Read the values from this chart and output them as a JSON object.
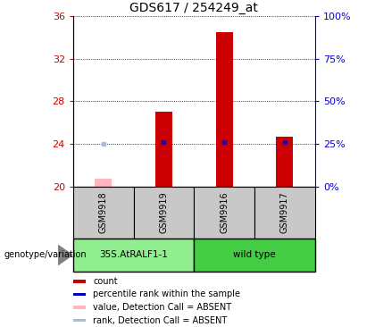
{
  "title": "GDS617 / 254249_at",
  "samples": [
    "GSM9918",
    "GSM9919",
    "GSM9916",
    "GSM9917"
  ],
  "ylim_left": [
    20,
    36
  ],
  "yticks_left": [
    20,
    24,
    28,
    32,
    36
  ],
  "ylim_right": [
    0,
    100
  ],
  "yticks_right": [
    0,
    25,
    50,
    75,
    100
  ],
  "bar_bottom": 20,
  "count_values": [
    20.7,
    27.0,
    34.5,
    24.7
  ],
  "count_absent": [
    true,
    false,
    false,
    false
  ],
  "percentile_values": [
    24.8,
    26.0,
    26.0,
    26.2
  ],
  "percentile_absent": [
    true,
    false,
    false,
    false
  ],
  "count_color": "#CC0000",
  "count_absent_color": "#FFB6C1",
  "percentile_color": "#0000CC",
  "percentile_absent_color": "#AABBDD",
  "bar_width": 0.28,
  "left_axis_color": "#CC0000",
  "right_axis_color": "#0000CC",
  "sample_area_color": "#C8C8C8",
  "group1_color": "#90EE90",
  "group2_color": "#44CC44",
  "group1_label": "35S.AtRALF1-1",
  "group2_label": "wild type",
  "genotype_label": "genotype/variation",
  "legend_items": [
    {
      "color": "#CC0000",
      "label": "count"
    },
    {
      "color": "#0000CC",
      "label": "percentile rank within the sample"
    },
    {
      "color": "#FFB6C1",
      "label": "value, Detection Call = ABSENT"
    },
    {
      "color": "#AABBDD",
      "label": "rank, Detection Call = ABSENT"
    }
  ]
}
